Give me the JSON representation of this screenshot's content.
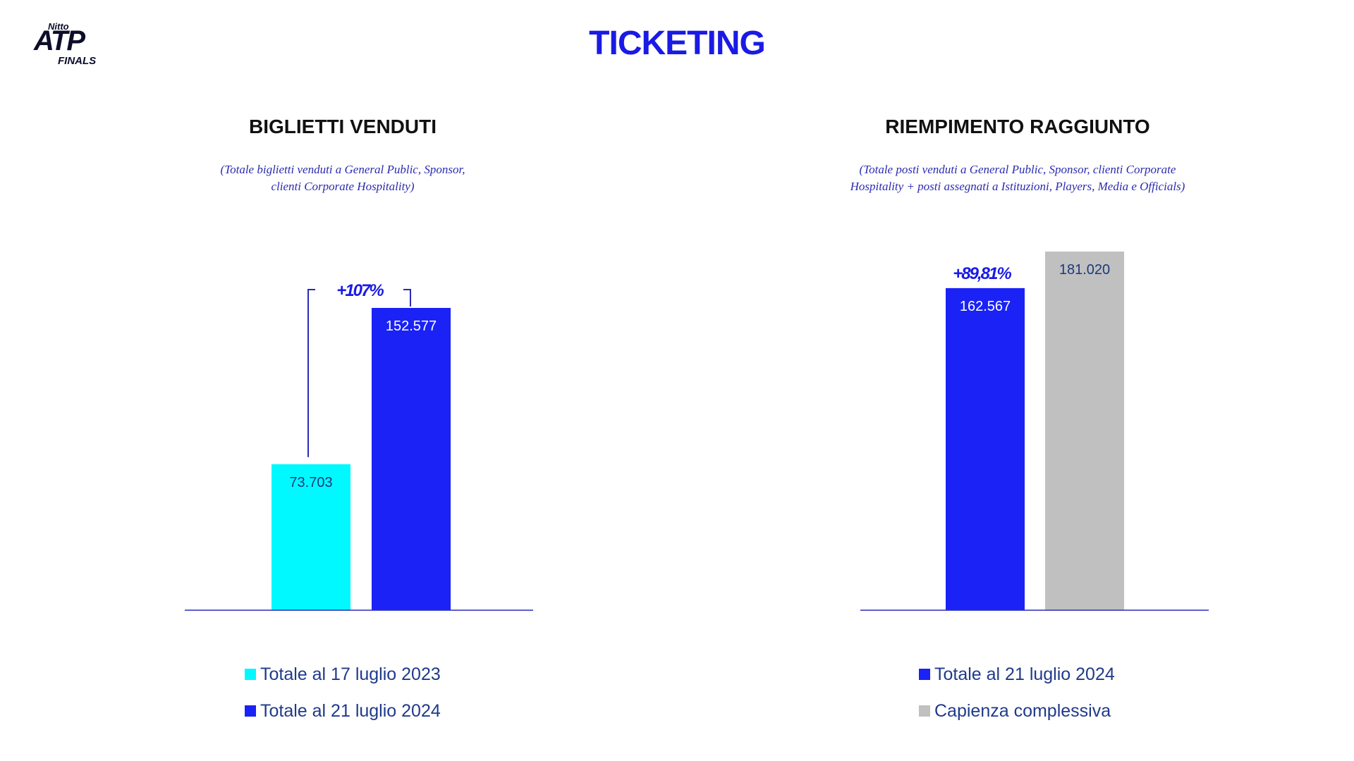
{
  "logo": {
    "top": "Nitto",
    "main": "ATP",
    "sub": "FINALS"
  },
  "title": "TICKETING",
  "colors": {
    "cyan": "#00f9ff",
    "blue": "#1a22f5",
    "grey": "#c0c0c0",
    "title_blue": "#1a1ae6"
  },
  "panels": {
    "left": {
      "title": "BIGLIETTI VENDUTI",
      "note_line1": "(Totale biglietti venduti a General Public, Sponsor,",
      "note_line2": "clienti Corporate Hospitality)",
      "growth_label": "+107%",
      "legend": [
        "Totale al 17 luglio 2023",
        "Totale al 21 luglio 2024"
      ]
    },
    "right": {
      "title": "RIEMPIMENTO RAGGIUNTO",
      "note_line1": "(Totale posti venduti a General Public, Sponsor,  clienti Corporate",
      "note_line2": "Hospitality + posti assegnati a Istituzioni, Players, Media e Officials)",
      "growth_label": "+89,81%",
      "legend": [
        "Totale al 21 luglio 2024",
        "Capienza complessiva"
      ]
    }
  },
  "chart_data": [
    {
      "type": "bar",
      "title": "BIGLIETTI VENDUTI",
      "categories": [
        "Totale al 17 luglio 2023",
        "Totale al 21 luglio 2024"
      ],
      "values": [
        73703,
        152577
      ],
      "labels": [
        "73.703",
        "152.577"
      ],
      "colors": [
        "#00f9ff",
        "#1a22f5"
      ],
      "annotation": "+107%",
      "ylim": [
        0,
        170000
      ]
    },
    {
      "type": "bar",
      "title": "RIEMPIMENTO RAGGIUNTO",
      "categories": [
        "Totale al 21 luglio 2024",
        "Capienza complessiva"
      ],
      "values": [
        162567,
        181020
      ],
      "labels": [
        "162.567",
        "181.020"
      ],
      "colors": [
        "#1a22f5",
        "#c0c0c0"
      ],
      "annotation": "+89,81%",
      "ylim": [
        0,
        181020
      ]
    }
  ]
}
